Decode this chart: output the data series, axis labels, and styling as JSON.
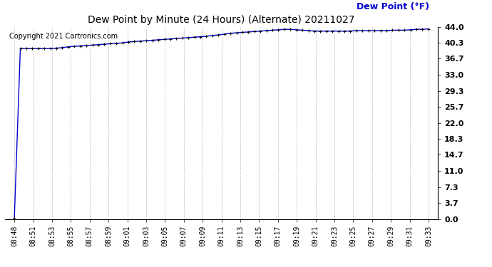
{
  "title": "Dew Point by Minute (24 Hours) (Alternate) 20211027",
  "ylabel_text": "Dew Point (°F)",
  "copyright": "Copyright 2021 Cartronics.com",
  "ylabel_color": "#0000cc",
  "title_color": "#000000",
  "line_color": "#0000cc",
  "marker_color": "#000000",
  "bg_color": "#ffffff",
  "grid_color": "#bbbbbb",
  "ylim": [
    0.0,
    44.0
  ],
  "yticks": [
    0.0,
    3.7,
    7.3,
    11.0,
    14.7,
    18.3,
    22.0,
    25.7,
    29.3,
    33.0,
    36.7,
    40.3,
    44.0
  ],
  "x_labels": [
    "08:48",
    "08:51",
    "08:53",
    "08:55",
    "08:57",
    "08:59",
    "09:01",
    "09:03",
    "09:05",
    "09:07",
    "09:09",
    "09:11",
    "09:13",
    "09:15",
    "09:17",
    "09:19",
    "09:21",
    "09:23",
    "09:25",
    "09:27",
    "09:29",
    "09:31",
    "09:33"
  ],
  "dew_point_values": [
    0.1,
    39.0,
    39.0,
    39.0,
    39.0,
    39.0,
    39.0,
    39.1,
    39.2,
    39.4,
    39.5,
    39.6,
    39.7,
    39.8,
    39.9,
    40.0,
    40.1,
    40.2,
    40.3,
    40.5,
    40.6,
    40.7,
    40.8,
    40.9,
    41.0,
    41.1,
    41.2,
    41.3,
    41.4,
    41.5,
    41.6,
    41.7,
    41.8,
    42.0,
    42.1,
    42.3,
    42.5,
    42.6,
    42.7,
    42.8,
    42.9,
    43.0,
    43.1,
    43.2,
    43.3,
    43.4,
    43.4,
    43.3,
    43.2,
    43.1,
    43.0,
    43.0,
    43.0,
    43.0,
    43.0,
    43.0,
    43.0,
    43.1,
    43.1,
    43.1,
    43.1,
    43.1,
    43.1,
    43.2,
    43.2,
    43.2,
    43.3,
    43.4,
    43.4,
    43.5
  ],
  "title_fontsize": 10,
  "label_fontsize": 8,
  "copyright_fontsize": 7,
  "ylabel_fontsize": 9
}
